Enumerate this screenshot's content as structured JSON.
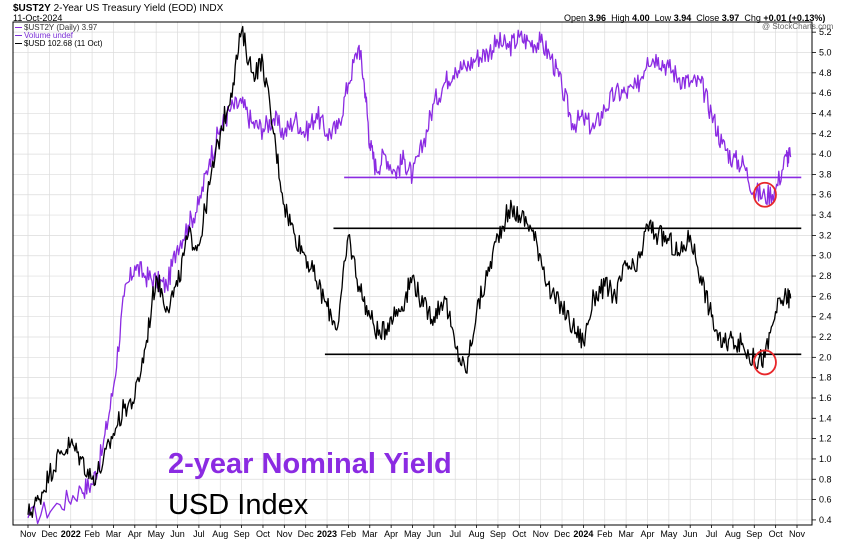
{
  "header": {
    "symbol": "$UST2Y",
    "description": "2-Year US Treasury Yield (EOD)",
    "exchange": "INDX",
    "date": "11-Oct-2024",
    "open_label": "Open",
    "open": "3.96",
    "high_label": "High",
    "high": "4.00",
    "low_label": "Low",
    "low": "3.94",
    "close_label": "Close",
    "close": "3.97",
    "chg_label": "Chg",
    "chg": "+0.01 (+0.13%)",
    "watermark": "@ StockCharts.com"
  },
  "legend": {
    "item1": "$UST2Y (Daily) 3.97",
    "item2": "Volume undef",
    "item3": "$USD 102.68 (11 Oct)"
  },
  "annotations": {
    "yield_title": "2-year Nominal Yield",
    "usd_title": "USD Index"
  },
  "colors": {
    "yield": "#8b2be2",
    "usd": "#000000",
    "circle": "#e8262a",
    "grid": "#dcdcdc"
  },
  "chart_data": {
    "type": "line",
    "x_tick_labels": [
      "Nov",
      "Dec",
      "2022",
      "Feb",
      "Mar",
      "Apr",
      "May",
      "Jun",
      "Jul",
      "Aug",
      "Sep",
      "Oct",
      "Nov",
      "Dec",
      "2023",
      "Feb",
      "Mar",
      "Apr",
      "May",
      "Jun",
      "Jul",
      "Aug",
      "Sep",
      "Oct",
      "Nov",
      "Dec",
      "2024",
      "Feb",
      "Mar",
      "Apr",
      "May",
      "Jun",
      "Jul",
      "Aug",
      "Sep",
      "Oct",
      "Nov"
    ],
    "x_tick_bold": [
      "2022",
      "2023",
      "2024"
    ],
    "y_ticks": [
      "5.2",
      "5.0",
      "4.8",
      "4.6",
      "4.4",
      "4.2",
      "4.0",
      "3.8",
      "3.6",
      "3.4",
      "3.2",
      "3.0",
      "2.8",
      "2.6",
      "2.4",
      "2.2",
      "2.0",
      "1.8",
      "1.6",
      "1.4",
      "1.2",
      "1.0",
      "0.8",
      "0.6",
      "0.4"
    ],
    "ylim": [
      0.35,
      5.3
    ],
    "grid": true,
    "series": [
      {
        "name": "$UST2Y",
        "points": [
          [
            0,
            0.42
          ],
          [
            1.5,
            0.55
          ],
          [
            2.5,
            0.7
          ],
          [
            3.0,
            0.75
          ],
          [
            3.5,
            1.1
          ],
          [
            4.0,
            1.7
          ],
          [
            4.5,
            2.6
          ],
          [
            5.0,
            2.9
          ],
          [
            5.5,
            2.8
          ],
          [
            6.0,
            2.75
          ],
          [
            6.5,
            2.7
          ],
          [
            7.0,
            3.1
          ],
          [
            7.5,
            3.3
          ],
          [
            8.0,
            3.5
          ],
          [
            8.5,
            3.95
          ],
          [
            9.0,
            4.25
          ],
          [
            9.5,
            4.45
          ],
          [
            10.0,
            4.5
          ],
          [
            10.5,
            4.3
          ],
          [
            11.0,
            4.25
          ],
          [
            11.5,
            4.35
          ],
          [
            12.0,
            4.2
          ],
          [
            12.5,
            4.35
          ],
          [
            13.0,
            4.2
          ],
          [
            13.5,
            4.4
          ],
          [
            14.0,
            4.2
          ],
          [
            14.5,
            4.25
          ],
          [
            15.0,
            4.7
          ],
          [
            15.5,
            5.07
          ],
          [
            15.8,
            4.6
          ],
          [
            16.0,
            4.1
          ],
          [
            16.3,
            3.85
          ],
          [
            16.7,
            4.0
          ],
          [
            17.2,
            3.82
          ],
          [
            17.6,
            3.95
          ],
          [
            18.0,
            3.78
          ],
          [
            18.5,
            4.1
          ],
          [
            19.0,
            4.5
          ],
          [
            19.5,
            4.7
          ],
          [
            20.0,
            4.85
          ],
          [
            20.5,
            4.85
          ],
          [
            21.0,
            4.95
          ],
          [
            21.5,
            5.0
          ],
          [
            22.0,
            5.1
          ],
          [
            22.5,
            5.05
          ],
          [
            23.0,
            5.15
          ],
          [
            23.5,
            5.1
          ],
          [
            24.0,
            5.1
          ],
          [
            24.5,
            4.95
          ],
          [
            25.0,
            4.65
          ],
          [
            25.5,
            4.3
          ],
          [
            26.0,
            4.35
          ],
          [
            26.5,
            4.25
          ],
          [
            27.0,
            4.45
          ],
          [
            27.5,
            4.6
          ],
          [
            28.0,
            4.6
          ],
          [
            28.5,
            4.65
          ],
          [
            29.0,
            4.95
          ],
          [
            29.5,
            4.95
          ],
          [
            30.0,
            4.85
          ],
          [
            30.5,
            4.75
          ],
          [
            31.0,
            4.7
          ],
          [
            31.5,
            4.7
          ],
          [
            32.0,
            4.4
          ],
          [
            32.5,
            4.1
          ],
          [
            33.0,
            3.95
          ],
          [
            33.5,
            3.9
          ],
          [
            34.0,
            3.63
          ],
          [
            34.5,
            3.58
          ],
          [
            35.0,
            3.65
          ],
          [
            35.5,
            3.98
          ],
          [
            35.7,
            3.97
          ]
        ]
      },
      {
        "name": "$USD",
        "points": [
          [
            0,
            0.45
          ],
          [
            0.5,
            0.6
          ],
          [
            1.0,
            0.85
          ],
          [
            1.5,
            1.05
          ],
          [
            2.0,
            1.15
          ],
          [
            2.5,
            1.0
          ],
          [
            3.0,
            0.8
          ],
          [
            3.5,
            0.95
          ],
          [
            4.0,
            1.25
          ],
          [
            4.5,
            1.5
          ],
          [
            5.0,
            1.6
          ],
          [
            5.5,
            2.1
          ],
          [
            6.0,
            2.8
          ],
          [
            6.5,
            2.5
          ],
          [
            7.0,
            2.7
          ],
          [
            7.5,
            3.2
          ],
          [
            8.0,
            3.1
          ],
          [
            8.5,
            3.7
          ],
          [
            9.0,
            4.2
          ],
          [
            9.5,
            4.6
          ],
          [
            10.0,
            5.21
          ],
          [
            10.5,
            4.8
          ],
          [
            11.0,
            4.9
          ],
          [
            11.5,
            4.2
          ],
          [
            12.0,
            3.5
          ],
          [
            12.5,
            3.2
          ],
          [
            13.0,
            3.0
          ],
          [
            13.5,
            2.75
          ],
          [
            14.0,
            2.5
          ],
          [
            14.5,
            2.3
          ],
          [
            15.0,
            3.2
          ],
          [
            15.5,
            2.7
          ],
          [
            16.0,
            2.4
          ],
          [
            16.5,
            2.2
          ],
          [
            17.0,
            2.4
          ],
          [
            17.5,
            2.5
          ],
          [
            18.0,
            2.8
          ],
          [
            18.5,
            2.5
          ],
          [
            19.0,
            2.4
          ],
          [
            19.5,
            2.6
          ],
          [
            20.0,
            2.1
          ],
          [
            20.5,
            1.85
          ],
          [
            21.0,
            2.45
          ],
          [
            21.5,
            2.8
          ],
          [
            22.0,
            3.2
          ],
          [
            22.5,
            3.45
          ],
          [
            23.0,
            3.4
          ],
          [
            23.5,
            3.3
          ],
          [
            24.0,
            3.0
          ],
          [
            24.5,
            2.6
          ],
          [
            25.0,
            2.5
          ],
          [
            25.5,
            2.3
          ],
          [
            26.0,
            2.15
          ],
          [
            26.5,
            2.6
          ],
          [
            27.0,
            2.7
          ],
          [
            27.5,
            2.6
          ],
          [
            28.0,
            2.9
          ],
          [
            28.5,
            2.85
          ],
          [
            29.0,
            3.3
          ],
          [
            29.5,
            3.2
          ],
          [
            30.0,
            3.15
          ],
          [
            30.5,
            3.0
          ],
          [
            31.0,
            3.2
          ],
          [
            31.5,
            2.8
          ],
          [
            32.0,
            2.4
          ],
          [
            32.5,
            2.1
          ],
          [
            33.0,
            2.2
          ],
          [
            33.5,
            2.1
          ],
          [
            34.0,
            1.97
          ],
          [
            34.5,
            2.0
          ],
          [
            35.0,
            2.45
          ],
          [
            35.5,
            2.6
          ],
          [
            35.7,
            2.58
          ]
        ]
      }
    ],
    "horizontal_lines": [
      {
        "y": 3.77,
        "x_from": 14.8,
        "x_to": 36.2,
        "color": "#8b2be2"
      },
      {
        "y": 3.27,
        "x_from": 14.3,
        "x_to": 36.2,
        "color": "#000000"
      },
      {
        "y": 2.03,
        "x_from": 13.9,
        "x_to": 36.2,
        "color": "#000000"
      }
    ],
    "circles": [
      {
        "x": 34.5,
        "y": 3.6
      },
      {
        "x": 34.5,
        "y": 1.95
      }
    ]
  }
}
